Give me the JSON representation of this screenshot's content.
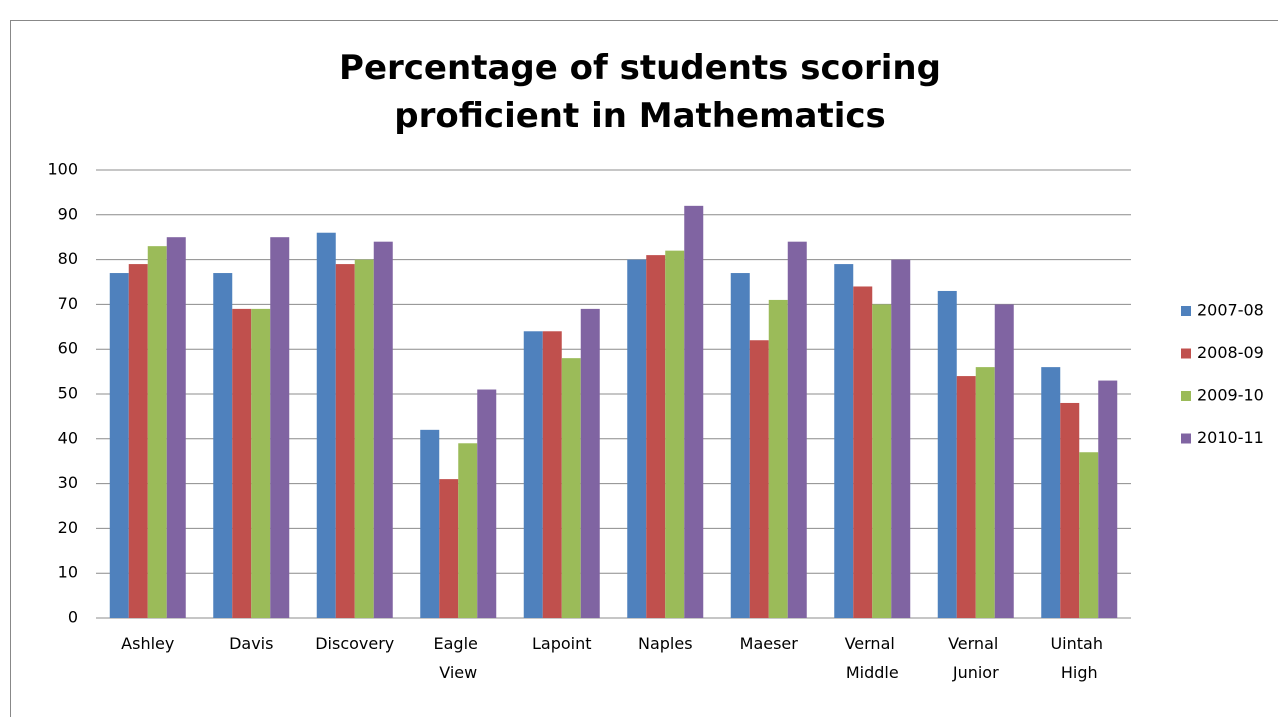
{
  "chart_data": {
    "type": "bar",
    "title": "Percentage of students scoring proficient in Mathematics",
    "categories": [
      "Ashley",
      "Davis",
      "Discovery",
      "Eagle View",
      "Lapoint",
      "Naples",
      "Maeser",
      "Vernal Middle",
      "Vernal Junior",
      "Uintah High"
    ],
    "series": [
      {
        "name": "2007-08",
        "color": "#4f81bd",
        "values": [
          77,
          77,
          86,
          42,
          64,
          80,
          77,
          79,
          73,
          56
        ]
      },
      {
        "name": "2008-09",
        "color": "#c0504d",
        "values": [
          79,
          69,
          79,
          31,
          64,
          81,
          62,
          74,
          54,
          48
        ]
      },
      {
        "name": "2009-10",
        "color": "#9bbb59",
        "values": [
          83,
          69,
          80,
          39,
          58,
          82,
          71,
          70,
          56,
          37
        ]
      },
      {
        "name": "2010-11",
        "color": "#8064a2",
        "values": [
          85,
          85,
          84,
          51,
          69,
          92,
          84,
          80,
          70,
          53
        ]
      }
    ],
    "ylim": [
      0,
      100
    ],
    "yticks": [
      0,
      10,
      20,
      30,
      40,
      50,
      60,
      70,
      80,
      90,
      100
    ],
    "grid": true,
    "legend": "right"
  }
}
